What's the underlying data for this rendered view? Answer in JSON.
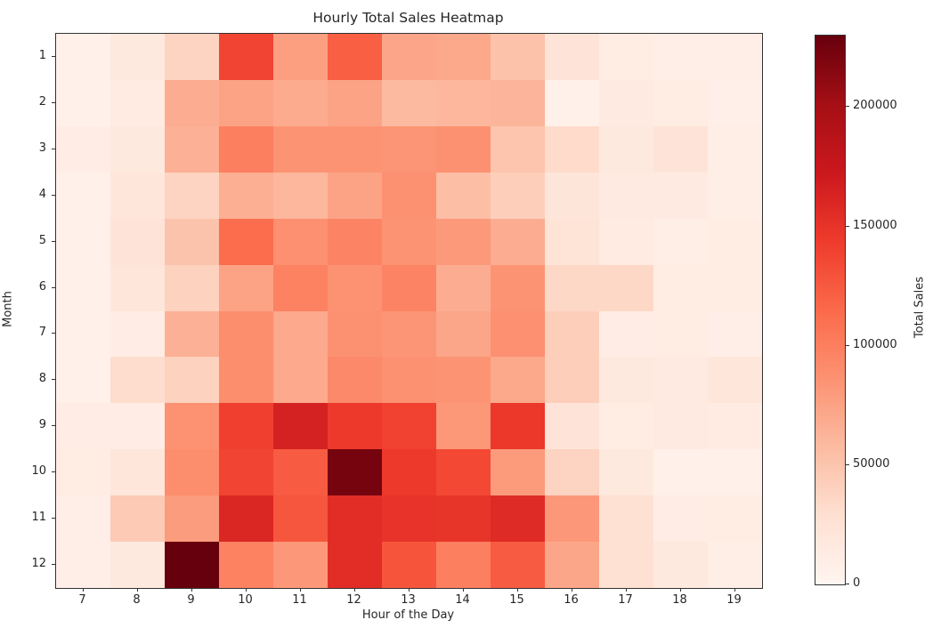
{
  "chart_data": {
    "type": "heatmap",
    "title": "Hourly Total Sales Heatmap",
    "xlabel": "Hour of the Day",
    "ylabel": "Month",
    "x": [
      7,
      8,
      9,
      10,
      11,
      12,
      13,
      14,
      15,
      16,
      17,
      18,
      19
    ],
    "y": [
      1,
      2,
      3,
      4,
      5,
      6,
      7,
      8,
      9,
      10,
      11,
      12
    ],
    "matrix": [
      [
        7000,
        16000,
        38000,
        138000,
        77000,
        122000,
        73000,
        71000,
        52000,
        23000,
        12000,
        9000,
        9000
      ],
      [
        7000,
        14000,
        68000,
        74000,
        69000,
        74000,
        58000,
        60000,
        62000,
        7000,
        15000,
        13000,
        8000
      ],
      [
        11000,
        16000,
        65000,
        100000,
        85000,
        85000,
        84000,
        87000,
        50000,
        33000,
        17000,
        23000,
        10000
      ],
      [
        7000,
        21000,
        39000,
        66000,
        60000,
        74000,
        87000,
        55000,
        42000,
        22000,
        15000,
        15000,
        10000
      ],
      [
        7000,
        23000,
        51000,
        113000,
        88000,
        96000,
        85000,
        81000,
        68000,
        24000,
        14000,
        10000,
        13000
      ],
      [
        7000,
        21000,
        40000,
        74000,
        98000,
        86000,
        96000,
        67000,
        85000,
        35000,
        35000,
        13000,
        13000
      ],
      [
        7000,
        11000,
        65000,
        89000,
        70000,
        87000,
        84000,
        72000,
        88000,
        42000,
        11000,
        13000,
        9000
      ],
      [
        7000,
        31000,
        40000,
        89000,
        70000,
        93000,
        87000,
        85000,
        71000,
        42000,
        17000,
        15000,
        20000
      ],
      [
        11000,
        11000,
        86000,
        141000,
        165000,
        145000,
        140000,
        83000,
        146000,
        23000,
        12000,
        15000,
        14000
      ],
      [
        12000,
        20000,
        90000,
        138000,
        124000,
        223000,
        145000,
        136000,
        80000,
        39000,
        17000,
        7000,
        7000
      ],
      [
        9000,
        46000,
        79000,
        160000,
        127000,
        155000,
        150000,
        149000,
        157000,
        82000,
        28000,
        11000,
        12000
      ],
      [
        9000,
        16000,
        230000,
        98000,
        82000,
        155000,
        128000,
        100000,
        124000,
        72000,
        28000,
        16000,
        10000
      ]
    ],
    "vmin": 0,
    "vmax": 230000,
    "colormap": "Reds",
    "colormap_stops": [
      {
        "pos": 0.0,
        "color": "#fff5f0"
      },
      {
        "pos": 0.125,
        "color": "#fee0d2"
      },
      {
        "pos": 0.25,
        "color": "#fcbba1"
      },
      {
        "pos": 0.375,
        "color": "#fc9272"
      },
      {
        "pos": 0.5,
        "color": "#fb6a4a"
      },
      {
        "pos": 0.625,
        "color": "#ef3b2c"
      },
      {
        "pos": 0.75,
        "color": "#cb181d"
      },
      {
        "pos": 0.875,
        "color": "#a50f15"
      },
      {
        "pos": 1.0,
        "color": "#67000d"
      }
    ],
    "colorbar": {
      "label": "Total Sales",
      "ticks": [
        0,
        50000,
        100000,
        150000,
        200000
      ]
    },
    "axis_color": "#333333",
    "text_color": "#262626",
    "grid": false,
    "legend": false
  }
}
